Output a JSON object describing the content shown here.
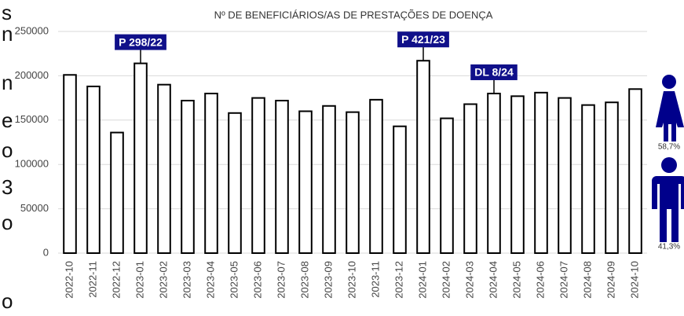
{
  "chart_data": {
    "type": "bar",
    "title": "Nº DE BENEFICIÁRIOS/AS DE PRESTAÇÕES DE DOENÇA",
    "categories": [
      "2022-10",
      "2022-11",
      "2022-12",
      "2023-01",
      "2023-02",
      "2023-03",
      "2023-04",
      "2023-05",
      "2023-06",
      "2023-07",
      "2023-08",
      "2023-09",
      "2023-10",
      "2023-11",
      "2023-12",
      "2024-01",
      "2024-02",
      "2024-03",
      "2024-04",
      "2024-05",
      "2024-06",
      "2024-07",
      "2024-08",
      "2024-09",
      "2024-10"
    ],
    "values": [
      201000,
      188000,
      136000,
      214000,
      190000,
      172000,
      180000,
      158000,
      175000,
      172000,
      160000,
      166000,
      159000,
      173000,
      143000,
      217000,
      152000,
      168000,
      180000,
      177000,
      181000,
      175000,
      167000,
      170000,
      185000
    ],
    "color": "#ffffff",
    "ylim": [
      0,
      250000
    ],
    "yticks": [
      0,
      50000,
      100000,
      150000,
      200000,
      250000
    ],
    "grid": true,
    "annotations": [
      {
        "text": "P 298/22",
        "category": "2023-01"
      },
      {
        "text": "P 421/23",
        "category": "2024-01"
      },
      {
        "text": "DL 8/24",
        "category": "2024-04"
      }
    ],
    "gender_labels": [
      "58,7%",
      "41,3%"
    ],
    "cropped_text": [
      "s",
      "n",
      "n",
      "e",
      "o",
      "3",
      "o",
      "o"
    ]
  }
}
